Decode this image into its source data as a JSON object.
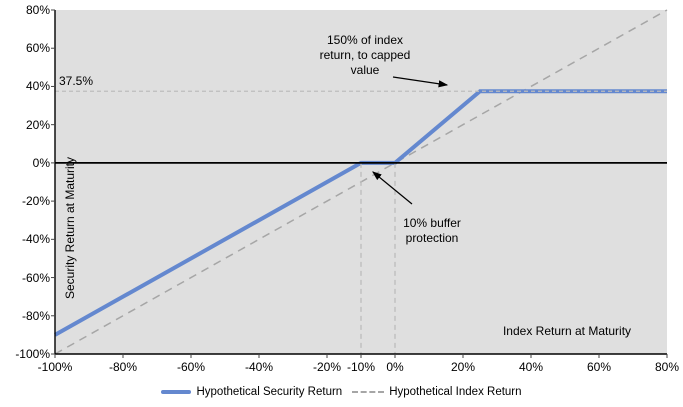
{
  "chart_data": {
    "type": "line",
    "title": "",
    "xlabel": "Index Return at Maturity",
    "ylabel": "Security Return at Maturity",
    "xlim": [
      -100,
      80
    ],
    "ylim": [
      -100,
      80
    ],
    "x_ticks": [
      -100,
      -80,
      -60,
      -40,
      -20,
      -10,
      0,
      20,
      40,
      60,
      80
    ],
    "y_ticks": [
      80,
      60,
      40,
      20,
      0,
      -20,
      -40,
      -60,
      -80,
      -100
    ],
    "tick_suffix": "%",
    "grid": false,
    "legend_position": "bottom",
    "plot_bg_color": "#dfdfdf",
    "axis_color": "#000000",
    "series": [
      {
        "name": "Hypothetical Security Return",
        "style": "solid",
        "color": "#6488cf",
        "stroke_width": 4,
        "points": [
          [
            -100,
            -90
          ],
          [
            -10,
            0
          ],
          [
            0,
            0
          ],
          [
            25,
            37.5
          ],
          [
            80,
            37.5
          ]
        ]
      },
      {
        "name": "Hypothetical Index Return",
        "style": "dashed",
        "color": "#a6a6a6",
        "stroke_width": 1.5,
        "points": [
          [
            -100,
            -100
          ],
          [
            80,
            80
          ]
        ]
      }
    ],
    "reference_lines": [
      {
        "name": "cap-level-line",
        "orientation": "horizontal",
        "value": 37.5,
        "span": [
          -100,
          80
        ],
        "style": "dashed",
        "color": "#bdbdbd"
      },
      {
        "name": "buffer-start-line",
        "orientation": "vertical",
        "value": -10,
        "span": [
          -100,
          0
        ],
        "style": "dashed",
        "color": "#bdbdbd"
      },
      {
        "name": "buffer-end-line",
        "orientation": "vertical",
        "value": 0,
        "span": [
          -100,
          0
        ],
        "style": "dashed",
        "color": "#bdbdbd"
      }
    ],
    "cap_label": "37.5%",
    "annotations": [
      {
        "id": "cap-annotation",
        "lines": [
          "150% of index",
          "return, to capped",
          "value"
        ]
      },
      {
        "id": "buffer-annotation",
        "lines": [
          "10% buffer",
          "protection"
        ]
      }
    ]
  },
  "legend": {
    "items": [
      {
        "label": "Hypothetical Security Return",
        "swatch": "solid-blue-line"
      },
      {
        "label": "Hypothetical Index Return",
        "swatch": "dashed-gray-line"
      }
    ]
  }
}
